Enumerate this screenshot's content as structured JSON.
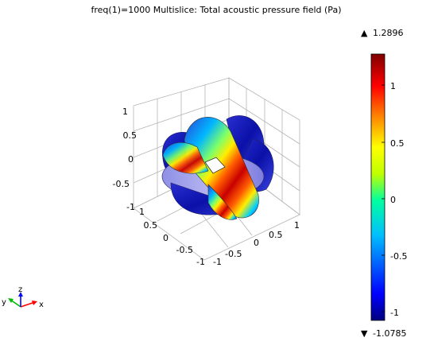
{
  "chart_data": {
    "type": "heatmap",
    "title": "freq(1)=1000   Multislice: Total acoustic pressure field (Pa)",
    "colorbar": {
      "max_label": "1.2896",
      "min_label": "-1.0785",
      "max": 1.2896,
      "min": -1.0785,
      "ticks": [
        1,
        0.5,
        0,
        -0.5,
        -1
      ],
      "tick_labels": [
        "1",
        "0.5",
        "0",
        "-0.5",
        "-1"
      ],
      "colormap": "rainbow",
      "colors": [
        "#00007f",
        "#0000ff",
        "#00bfff",
        "#00ffa0",
        "#bfff00",
        "#ffff00",
        "#ff8000",
        "#ff0000",
        "#7f0000"
      ]
    },
    "axes": {
      "z_ticks": [
        "1",
        "0.5",
        "0",
        "-0.5",
        "-1"
      ],
      "x_ticks": [
        "1",
        "0.5",
        "0",
        "-0.5",
        "-1"
      ],
      "y_ticks": [
        "-1",
        "-0.5",
        "0",
        "0.5",
        "1"
      ],
      "xlim": [
        -1,
        1
      ],
      "ylim": [
        -1,
        1
      ],
      "zlim": [
        -1,
        1
      ],
      "grid": true
    },
    "triad": {
      "x": "x",
      "y": "y",
      "z": "z",
      "x_color": "#ff0000",
      "y_color": "#00bb00",
      "z_color": "#0000ff"
    }
  }
}
